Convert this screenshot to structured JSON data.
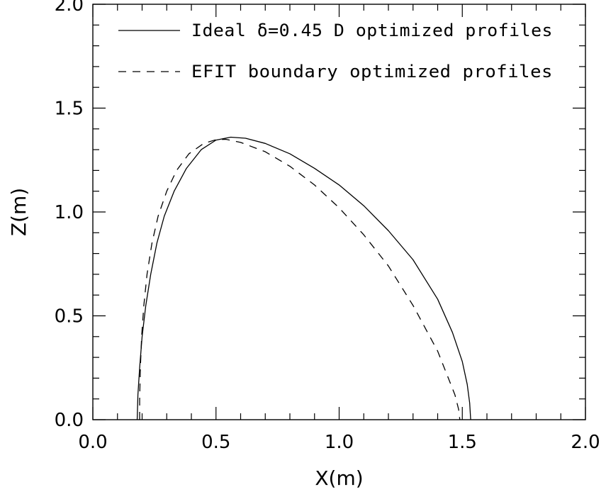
{
  "chart_data": {
    "type": "line",
    "title": "",
    "xlabel": "X(m)",
    "ylabel": "Z(m)",
    "xlim": [
      0.0,
      2.0
    ],
    "ylim": [
      0.0,
      2.0
    ],
    "grid": false,
    "legend_position": "top",
    "x_ticks": [
      "0.0",
      "0.5",
      "1.0",
      "1.5",
      "2.0"
    ],
    "y_ticks": [
      "0.0",
      "0.5",
      "1.0",
      "1.5",
      "2.0"
    ],
    "series": [
      {
        "name": "Ideal δ=0.45 D optimized profiles",
        "style": "solid",
        "color": "#000000",
        "x": [
          0.18,
          0.183,
          0.19,
          0.2,
          0.215,
          0.235,
          0.26,
          0.29,
          0.33,
          0.38,
          0.44,
          0.5,
          0.56,
          0.62,
          0.7,
          0.8,
          0.9,
          1.0,
          1.1,
          1.2,
          1.3,
          1.4,
          1.46,
          1.5,
          1.52,
          1.53,
          1.534
        ],
        "y": [
          0.0,
          0.12,
          0.25,
          0.4,
          0.55,
          0.7,
          0.85,
          0.98,
          1.1,
          1.21,
          1.3,
          1.346,
          1.36,
          1.355,
          1.33,
          1.28,
          1.21,
          1.13,
          1.03,
          0.91,
          0.77,
          0.58,
          0.42,
          0.28,
          0.17,
          0.08,
          0.0
        ]
      },
      {
        "name": "EFIT boundary optimized profiles",
        "style": "dashed",
        "color": "#000000",
        "x": [
          0.19,
          0.19,
          0.193,
          0.198,
          0.207,
          0.22,
          0.24,
          0.265,
          0.3,
          0.34,
          0.39,
          0.45,
          0.5,
          0.54,
          0.6,
          0.7,
          0.8,
          0.9,
          1.0,
          1.1,
          1.2,
          1.3,
          1.4,
          1.44,
          1.47,
          1.485,
          1.49
        ],
        "y": [
          0.0,
          0.1,
          0.25,
          0.4,
          0.55,
          0.7,
          0.85,
          0.98,
          1.1,
          1.2,
          1.28,
          1.33,
          1.348,
          1.35,
          1.335,
          1.29,
          1.22,
          1.13,
          1.02,
          0.89,
          0.74,
          0.55,
          0.33,
          0.21,
          0.12,
          0.05,
          0.0
        ]
      }
    ]
  }
}
